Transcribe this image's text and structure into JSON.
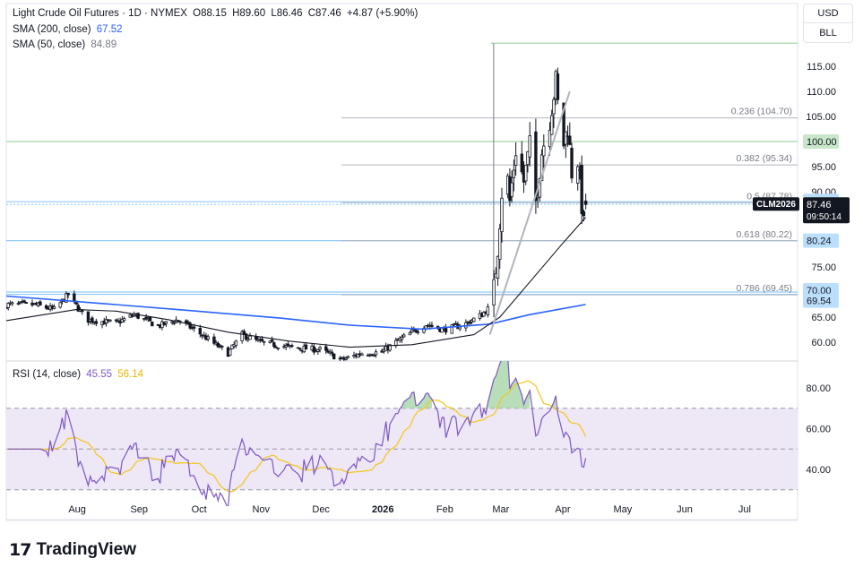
{
  "header": {
    "title": "Light Crude Oil Futures · 1D · NYMEX",
    "open": "O88.15",
    "high": "H89.60",
    "low": "L86.46",
    "close": "C87.46",
    "change": "+4.87 (+5.90%)",
    "sma200_label": "SMA (200, close)",
    "sma200_value": "67.52",
    "sma50_label": "SMA (50, close)",
    "sma50_value": "84.89",
    "rsi_label": "RSI (14, close)",
    "rsi_value": "45.55",
    "rsi_ma_value": "56.14"
  },
  "buttons": {
    "currency": "USD",
    "unit": "BLL"
  },
  "brand": {
    "name": "TradingView"
  },
  "colors": {
    "sma200": "#2962ff",
    "sma50": "#131722",
    "rsi": "#7e57c2",
    "rsi_ma": "#f5c518",
    "rsi_band": "#ede7f6",
    "green_level": "#a5d6a7",
    "blue_level": "#90caf9",
    "fib": "#b2b5be",
    "badge_blue": "#bbdefb",
    "badge_green": "#c8e6c9",
    "price_badge": "#131722"
  },
  "chart_data": [
    {
      "type": "candlestick",
      "title": "Light Crude Oil Futures · 1D · NYMEX",
      "x_tick_labels": [
        "Aug",
        "Sep",
        "Oct",
        "Nov",
        "Dec",
        "2026",
        "Feb",
        "Mar",
        "Apr",
        "May",
        "Jun",
        "Jul"
      ],
      "y_tick_labels": [
        "60.00",
        "65.00",
        "70.00",
        "75.00",
        "80.00",
        "85.00",
        "90.00",
        "95.00",
        "100.00",
        "105.00",
        "110.00",
        "115.00"
      ],
      "ylim": [
        56,
        122
      ],
      "last_price": {
        "value": 87.46,
        "symbol": "CLM2026",
        "countdown": "09:50:14"
      },
      "series": [
        {
          "name": "Price",
          "anchors": [
            [
              "2025-07-15",
              67.5
            ],
            [
              "2025-07-25",
              66.5
            ],
            [
              "2025-08-01",
              69.5
            ],
            [
              "2025-08-10",
              64.5
            ],
            [
              "2025-08-25",
              63.8
            ],
            [
              "2025-09-03",
              65.5
            ],
            [
              "2025-09-15",
              63.2
            ],
            [
              "2025-09-25",
              64.5
            ],
            [
              "2025-10-05",
              62.0
            ],
            [
              "2025-10-12",
              60.0
            ],
            [
              "2025-10-20",
              57.8
            ],
            [
              "2025-10-27",
              61.5
            ],
            [
              "2025-11-05",
              60.0
            ],
            [
              "2025-11-20",
              59.0
            ],
            [
              "2025-12-05",
              58.5
            ],
            [
              "2025-12-16",
              56.5
            ],
            [
              "2025-12-26",
              57.8
            ],
            [
              "2026-01-05",
              58.0
            ],
            [
              "2026-01-10",
              59.5
            ],
            [
              "2026-01-20",
              62.0
            ],
            [
              "2026-01-27",
              63.5
            ],
            [
              "2026-02-05",
              62.5
            ],
            [
              "2026-02-15",
              63.5
            ],
            [
              "2026-02-24",
              65.5
            ],
            [
              "2026-02-28",
              67.0
            ],
            [
              "2026-03-02",
              70.5
            ],
            [
              "2026-03-04",
              79.0
            ],
            [
              "2026-03-06",
              90.0
            ],
            [
              "2026-03-08",
              96.5
            ],
            [
              "2026-03-10",
              88.0
            ],
            [
              "2026-03-13",
              98.5
            ],
            [
              "2026-03-17",
              92.0
            ],
            [
              "2026-03-20",
              99.0
            ],
            [
              "2026-03-23",
              88.0
            ],
            [
              "2026-03-26",
              98.0
            ],
            [
              "2026-03-30",
              104.5
            ],
            [
              "2026-04-02",
              112.0
            ],
            [
              "2026-04-05",
              98.0
            ],
            [
              "2026-04-08",
              103.0
            ],
            [
              "2026-04-10",
              94.0
            ],
            [
              "2026-04-13",
              96.5
            ],
            [
              "2026-04-16",
              83.0
            ],
            [
              "2026-04-17",
              87.46
            ]
          ]
        },
        {
          "name": "SMA (200, close)",
          "points": [
            [
              "2025-07-01",
              69.2
            ],
            [
              "2025-08-15",
              67.8
            ],
            [
              "2025-10-01",
              66.3
            ],
            [
              "2025-11-15",
              64.8
            ],
            [
              "2025-12-20",
              63.4
            ],
            [
              "2026-01-25",
              62.6
            ],
            [
              "2026-02-28",
              63.6
            ],
            [
              "2026-03-20",
              65.5
            ],
            [
              "2026-04-17",
              67.52
            ]
          ]
        },
        {
          "name": "SMA (50, close)",
          "points": [
            [
              "2025-07-01",
              64.3
            ],
            [
              "2025-08-05",
              66.5
            ],
            [
              "2025-08-25",
              66.2
            ],
            [
              "2025-09-20",
              64.5
            ],
            [
              "2025-10-20",
              62.0
            ],
            [
              "2025-11-20",
              60.2
            ],
            [
              "2025-12-20",
              59.0
            ],
            [
              "2026-01-20",
              59.5
            ],
            [
              "2026-02-20",
              61.5
            ],
            [
              "2026-03-05",
              65.0
            ],
            [
              "2026-03-20",
              72.0
            ],
            [
              "2026-04-05",
              79.5
            ],
            [
              "2026-04-17",
              84.89
            ]
          ]
        }
      ],
      "levels": [
        {
          "value": 100.0,
          "label": "100.00",
          "kind": "green"
        },
        {
          "value": 88.0,
          "label": "88.00",
          "kind": "blue"
        },
        {
          "value": 80.24,
          "label": "80.24",
          "kind": "blue"
        },
        {
          "value": 70.0,
          "label": "70.00",
          "kind": "blue"
        },
        {
          "value": 69.54,
          "label": "69.54",
          "kind": "blue"
        }
      ],
      "fib_levels": [
        {
          "label": "0.236 (104.70)",
          "value": 104.7
        },
        {
          "label": "0.382 (95.34)",
          "value": 95.34
        },
        {
          "label": "0.5 (87.78)",
          "value": 87.78
        },
        {
          "label": "0.618 (80.22)",
          "value": 80.22
        },
        {
          "label": "0.786 (69.45)",
          "value": 69.45
        }
      ],
      "fib_range": {
        "high": 119.6,
        "low": 69.45,
        "start": "2026-03-01",
        "end": "2026-04-17"
      },
      "trendline": {
        "from": [
          "2026-02-28",
          61.5
        ],
        "to": [
          "2026-04-09",
          110.0
        ]
      }
    },
    {
      "type": "line",
      "title": "RSI (14, close)",
      "y_tick_labels": [
        "40.00",
        "60.00",
        "80.00"
      ],
      "ylim": [
        22,
        95
      ],
      "band": [
        30,
        70
      ],
      "midline": 50,
      "series": [
        {
          "name": "RSI",
          "source": "price"
        },
        {
          "name": "RSI MA"
        }
      ]
    }
  ]
}
